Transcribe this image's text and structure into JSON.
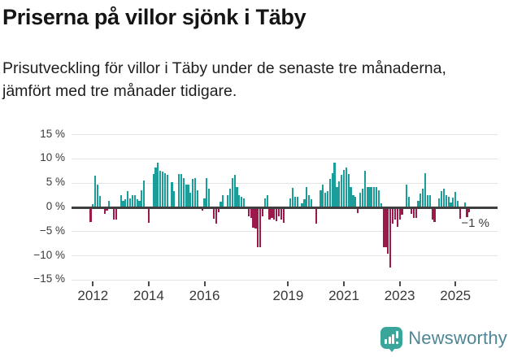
{
  "header": {
    "title": "Priserna på villor sjönk i Täby",
    "subtitle": "Prisutveckling för villor i Täby under de senaste tre månaderna, jämfört med tre månader tidigare."
  },
  "colors": {
    "positive_bar": "#1B9E9A",
    "negative_bar": "#9B1A4B",
    "zero_axis": "#3f3f3f",
    "gridline": "#e4e4e4",
    "logo_teal": "#3AA69B",
    "logo_text": "#4E8695"
  },
  "chart_data": {
    "type": "bar",
    "unit": "%",
    "start_month": "2011-12",
    "end_month": "2025-07",
    "ylim": [
      -15,
      15
    ],
    "grid": true,
    "legend": "none",
    "y_ticks": [
      {
        "value": 15,
        "label": "15 %"
      },
      {
        "value": 10,
        "label": "10 %"
      },
      {
        "value": 5,
        "label": "5 %"
      },
      {
        "value": 0,
        "label": "0 %"
      },
      {
        "value": -5,
        "label": "−5 %"
      },
      {
        "value": -10,
        "label": "−10 %"
      },
      {
        "value": -15,
        "label": "−15 %"
      }
    ],
    "x_ticks": [
      {
        "label": "2012",
        "month_index": 1
      },
      {
        "label": "2014",
        "month_index": 25
      },
      {
        "label": "2016",
        "month_index": 49
      },
      {
        "label": "2019",
        "month_index": 85
      },
      {
        "label": "2021",
        "month_index": 109
      },
      {
        "label": "2023",
        "month_index": 133
      },
      {
        "label": "2025",
        "month_index": 157
      }
    ],
    "values": [
      -3.0,
      0.7,
      6.5,
      4.7,
      2.4,
      0,
      -1.4,
      -0.7,
      1.4,
      0,
      -2.5,
      -2.5,
      0,
      2.5,
      1.3,
      1.7,
      3.3,
      1.9,
      2.5,
      2.5,
      1.7,
      1.4,
      3.6,
      5.5,
      0,
      -3.2,
      0,
      6.9,
      8.2,
      9.3,
      7.5,
      7.3,
      7.0,
      6.7,
      0,
      5.2,
      3.3,
      0,
      6.9,
      6.9,
      6.0,
      4.7,
      4.7,
      3.0,
      5.8,
      6.0,
      3.6,
      0,
      -0.6,
      1.9,
      6.0,
      3.9,
      0,
      -2.3,
      -3.4,
      -1.0,
      1.1,
      2.5,
      0,
      2.5,
      3.9,
      6.1,
      6.7,
      4.2,
      2.5,
      2.1,
      1.9,
      0,
      -1.9,
      -2.2,
      -4.2,
      -4.4,
      -8.3,
      -8.3,
      -1.9,
      1.9,
      2.5,
      -2.5,
      -2.2,
      -2.5,
      -2.8,
      -1.9,
      -2.6,
      -3.2,
      0,
      0,
      1.9,
      4.0,
      2.2,
      2.2,
      0,
      0.8,
      1.7,
      4.2,
      2.5,
      1.7,
      0,
      -3.4,
      0,
      3.6,
      4.7,
      3.0,
      3.3,
      5.8,
      7.0,
      9.3,
      4.2,
      5.3,
      6.7,
      7.8,
      8.2,
      6.9,
      4.2,
      2.5,
      2.2,
      -1.1,
      3.0,
      3.9,
      7.6,
      4.2,
      4.2,
      4.2,
      4.2,
      4.2,
      3.6,
      0.8,
      -8.2,
      -8.2,
      -9.6,
      -12.4,
      -3.4,
      -2.6,
      -4.0,
      -2.6,
      -1.5,
      0,
      4.7,
      2.2,
      -1.4,
      -2.2,
      -2.2,
      1.4,
      2.8,
      3.9,
      7.1,
      2.5,
      2.5,
      -2.5,
      -3.0,
      0,
      1.9,
      3.3,
      3.8,
      2.5,
      2.2,
      1.0,
      2.0,
      3.2,
      1.3,
      -2.3,
      0,
      1.0,
      -2.0,
      -1.0
    ],
    "annotation": {
      "label": "−1 %",
      "value": -1
    }
  },
  "footer": {
    "logo_text": "Newsworthy",
    "logo_icon": "newsworthy-bars-icon"
  }
}
